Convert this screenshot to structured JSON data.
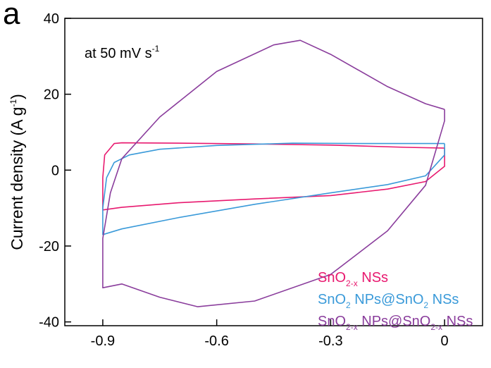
{
  "chart_data": {
    "type": "line",
    "panel_label": "a",
    "annotation": "at 50 mV s",
    "annotation_exp": "-1",
    "xlabel": "",
    "ylabel": "Current density (A g",
    "ylabel_exp": "-1",
    "ylabel_end": ")",
    "xlim": [
      -1.0,
      0.1
    ],
    "ylim": [
      -41,
      40
    ],
    "xticks": [
      -0.9,
      -0.6,
      -0.3,
      0
    ],
    "xtick_labels": [
      "-0.9",
      "-0.6",
      "-0.3",
      "0"
    ],
    "yticks": [
      -40,
      -20,
      0,
      20,
      40
    ],
    "ytick_labels": [
      "-40",
      "-20",
      "0",
      "20",
      "40"
    ],
    "legend_position": "bottom-right",
    "series": [
      {
        "legend": [
          {
            "t": "SnO",
            "s": ""
          },
          {
            "t": "2-x",
            "s": "sub"
          },
          {
            "t": " NSs",
            "s": ""
          }
        ],
        "color": "#e8196f",
        "points": [
          [
            0.0,
            5.8
          ],
          [
            -0.1,
            6.0
          ],
          [
            -0.3,
            6.6
          ],
          [
            -0.5,
            6.9
          ],
          [
            -0.7,
            7.1
          ],
          [
            -0.85,
            7.2
          ],
          [
            -0.87,
            7.0
          ],
          [
            -0.895,
            4.0
          ],
          [
            -0.9,
            -2.0
          ],
          [
            -0.9,
            -10.5
          ],
          [
            -0.85,
            -9.8
          ],
          [
            -0.7,
            -8.6
          ],
          [
            -0.5,
            -7.6
          ],
          [
            -0.3,
            -6.7
          ],
          [
            -0.15,
            -5.0
          ],
          [
            -0.05,
            -3.0
          ],
          [
            0.0,
            1.0
          ],
          [
            0.0,
            5.8
          ]
        ]
      },
      {
        "legend": [
          {
            "t": "SnO",
            "s": ""
          },
          {
            "t": "2",
            "s": "sub"
          },
          {
            "t": " NPs@SnO",
            "s": ""
          },
          {
            "t": "2",
            "s": "sub"
          },
          {
            "t": " NSs",
            "s": ""
          }
        ],
        "color": "#3a9ad9",
        "points": [
          [
            0.0,
            7.0
          ],
          [
            -0.2,
            7.0
          ],
          [
            -0.4,
            7.1
          ],
          [
            -0.6,
            6.5
          ],
          [
            -0.75,
            5.5
          ],
          [
            -0.83,
            4.0
          ],
          [
            -0.87,
            2.0
          ],
          [
            -0.89,
            -2.0
          ],
          [
            -0.9,
            -10.0
          ],
          [
            -0.9,
            -17.0
          ],
          [
            -0.85,
            -15.5
          ],
          [
            -0.7,
            -12.5
          ],
          [
            -0.5,
            -9.0
          ],
          [
            -0.3,
            -6.0
          ],
          [
            -0.15,
            -3.8
          ],
          [
            -0.05,
            -1.5
          ],
          [
            0.0,
            4.0
          ],
          [
            0.0,
            7.0
          ]
        ]
      },
      {
        "legend": [
          {
            "t": "SnO",
            "s": ""
          },
          {
            "t": "2-x",
            "s": "sub"
          },
          {
            "t": " NPs@SnO",
            "s": ""
          },
          {
            "t": "2-x",
            "s": "sub"
          },
          {
            "t": " NSs",
            "s": ""
          }
        ],
        "color": "#8a3d9c",
        "points": [
          [
            0.0,
            16.0
          ],
          [
            -0.05,
            17.5
          ],
          [
            -0.15,
            22.0
          ],
          [
            -0.3,
            30.5
          ],
          [
            -0.38,
            34.2
          ],
          [
            -0.45,
            33.0
          ],
          [
            -0.6,
            26.0
          ],
          [
            -0.75,
            14.0
          ],
          [
            -0.85,
            3.0
          ],
          [
            -0.88,
            -6.0
          ],
          [
            -0.9,
            -18.0
          ],
          [
            -0.9,
            -31.0
          ],
          [
            -0.85,
            -30.0
          ],
          [
            -0.75,
            -33.5
          ],
          [
            -0.65,
            -36.0
          ],
          [
            -0.5,
            -34.5
          ],
          [
            -0.3,
            -27.5
          ],
          [
            -0.15,
            -16.0
          ],
          [
            -0.05,
            -4.0
          ],
          [
            0.0,
            13.0
          ],
          [
            0.0,
            16.0
          ]
        ]
      }
    ]
  }
}
